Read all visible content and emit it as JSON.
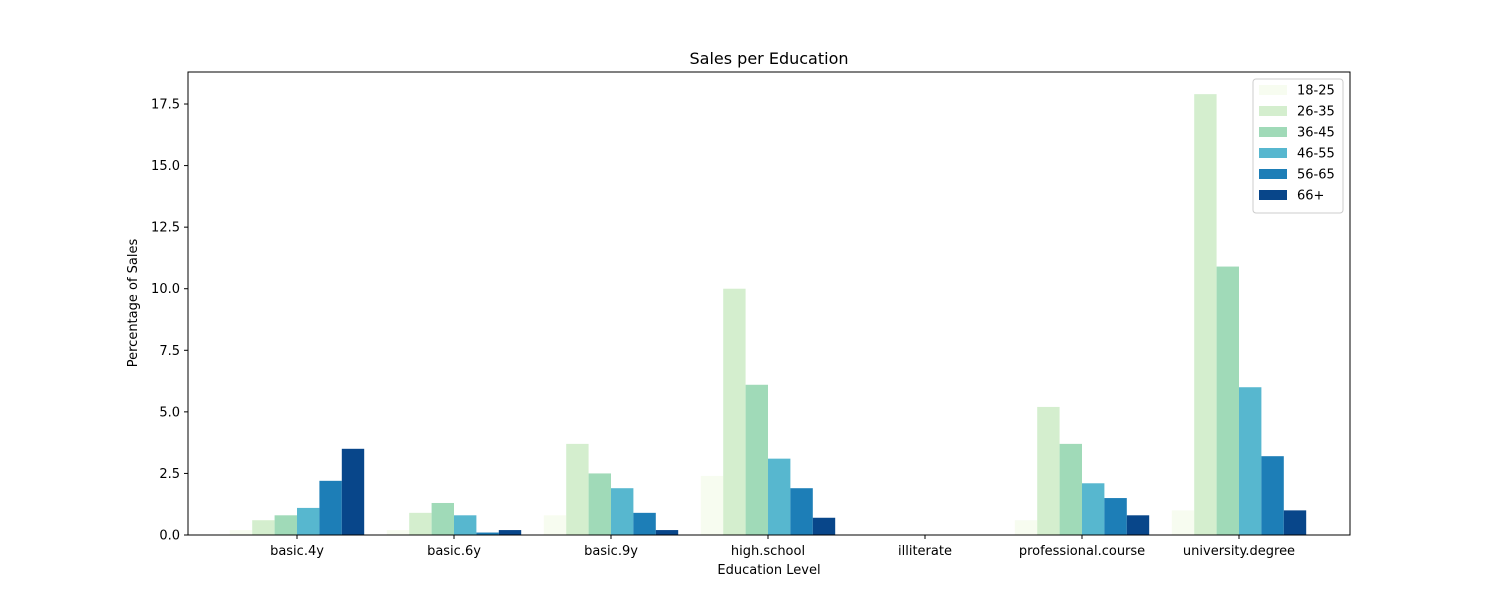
{
  "chart_data": {
    "type": "bar",
    "title": "Sales per Education",
    "xlabel": "Education Level",
    "ylabel": "Percentage of Sales",
    "categories": [
      "basic.4y",
      "basic.6y",
      "basic.9y",
      "high.school",
      "illiterate",
      "professional.course",
      "university.degree"
    ],
    "ylim": [
      0,
      18.8
    ],
    "yticks": [
      0.0,
      2.5,
      5.0,
      7.5,
      10.0,
      12.5,
      15.0,
      17.5
    ],
    "ytick_labels": [
      "0.0",
      "2.5",
      "5.0",
      "7.5",
      "10.0",
      "12.5",
      "15.0",
      "17.5"
    ],
    "grid": false,
    "legend_position": "top-right",
    "series": [
      {
        "name": "18-25",
        "color": "#f7fcf0",
        "values": [
          0.2,
          0.2,
          0.8,
          2.4,
          0.0,
          0.6,
          1.0
        ]
      },
      {
        "name": "26-35",
        "color": "#d4eece",
        "values": [
          0.6,
          0.9,
          3.7,
          10.0,
          0.0,
          5.2,
          17.9
        ]
      },
      {
        "name": "36-45",
        "color": "#a0dab8",
        "values": [
          0.8,
          1.3,
          2.5,
          6.1,
          0.0,
          3.7,
          10.9
        ]
      },
      {
        "name": "46-55",
        "color": "#57b7cf",
        "values": [
          1.1,
          0.8,
          1.9,
          3.1,
          0.0,
          2.1,
          6.0
        ]
      },
      {
        "name": "56-65",
        "color": "#1d7eb7",
        "values": [
          2.2,
          0.1,
          0.9,
          1.9,
          0.0,
          1.5,
          3.2
        ]
      },
      {
        "name": "66+",
        "color": "#08468a",
        "values": [
          3.5,
          0.2,
          0.2,
          0.7,
          0.0,
          0.8,
          1.0
        ]
      }
    ]
  }
}
